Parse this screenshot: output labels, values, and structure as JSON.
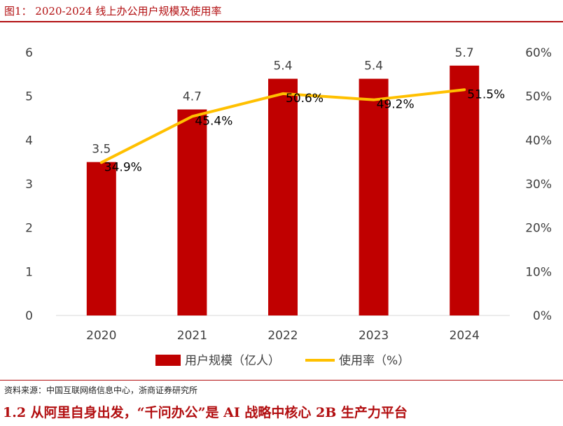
{
  "figure": {
    "title": "图1：  2020-2024 线上办公用户规模及使用率",
    "source": "资料来源：中国互联网络信息中心，浙商证券研究所"
  },
  "section": {
    "heading": "1.2 从阿里自身出发，“千问办公”是 AI 战略中核心 2B 生产力平台"
  },
  "chart_data": {
    "type": "bar",
    "categories": [
      "2020",
      "2021",
      "2022",
      "2023",
      "2024"
    ],
    "series": [
      {
        "name": "用户规模（亿人）",
        "type": "bar",
        "axis": "left",
        "color": "#c00000",
        "values": [
          3.5,
          4.7,
          5.4,
          5.4,
          5.7
        ],
        "labels": [
          "3.5",
          "4.7",
          "5.4",
          "5.4",
          "5.7"
        ]
      },
      {
        "name": "使用率（%）",
        "type": "line",
        "axis": "right",
        "color": "#ffc000",
        "values": [
          34.9,
          45.4,
          50.6,
          49.2,
          51.5
        ],
        "labels": [
          "34.9%",
          "45.4%",
          "50.6%",
          "49.2%",
          "51.5%"
        ]
      }
    ],
    "y_left": {
      "ylim": [
        0,
        6
      ],
      "ticks": [
        "0",
        "1",
        "2",
        "3",
        "4",
        "5",
        "6"
      ]
    },
    "y_right": {
      "ylim": [
        0,
        60
      ],
      "ticks": [
        "0%",
        "10%",
        "20%",
        "30%",
        "40%",
        "50%",
        "60%"
      ]
    },
    "grid": false,
    "legend": "bottom"
  }
}
